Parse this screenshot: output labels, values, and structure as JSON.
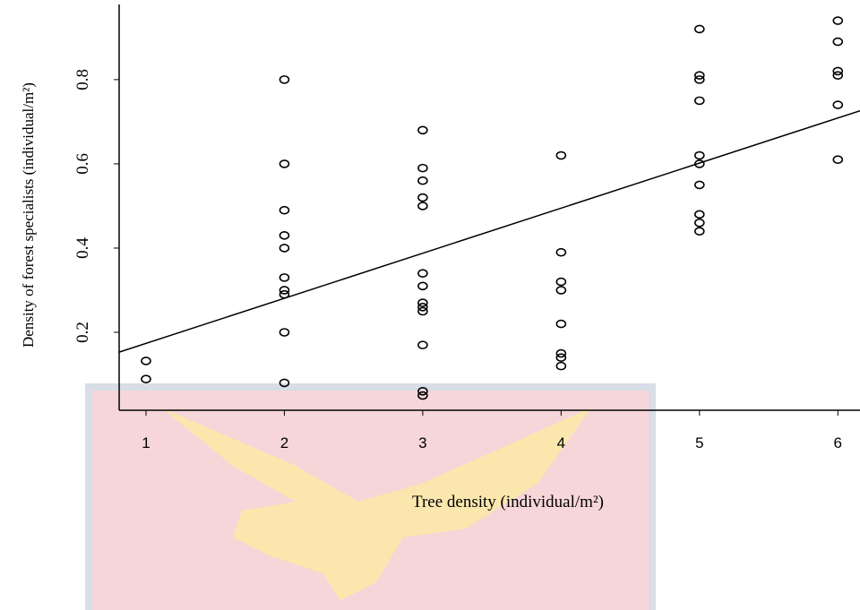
{
  "chart_data": {
    "type": "scatter",
    "xlabel": "Tree density (individual/m²)",
    "ylabel": "Density of forest specialists (individual/m²)",
    "x": [
      1,
      1,
      2,
      2,
      2,
      2,
      2,
      2,
      2,
      2,
      2,
      2,
      3,
      3,
      3,
      3,
      3,
      3,
      3,
      3,
      3,
      3,
      3,
      3,
      3,
      4,
      4,
      4,
      4,
      4,
      4,
      4,
      4,
      5,
      5,
      5,
      5,
      5,
      5,
      5,
      5,
      5,
      5,
      6,
      6,
      6,
      6,
      6,
      6
    ],
    "values": [
      0.132,
      0.089,
      0.8,
      0.6,
      0.49,
      0.43,
      0.4,
      0.33,
      0.3,
      0.29,
      0.2,
      0.08,
      0.68,
      0.59,
      0.56,
      0.52,
      0.5,
      0.34,
      0.31,
      0.27,
      0.26,
      0.25,
      0.17,
      0.06,
      0.05,
      0.62,
      0.39,
      0.32,
      0.3,
      0.22,
      0.15,
      0.14,
      0.12,
      0.92,
      0.81,
      0.8,
      0.75,
      0.62,
      0.6,
      0.55,
      0.48,
      0.46,
      0.44,
      0.94,
      0.89,
      0.82,
      0.81,
      0.74,
      0.61
    ],
    "fit_line": {
      "x": [
        0.806,
        6.16
      ],
      "values": [
        0.153,
        0.726
      ]
    },
    "xlim": [
      0.806,
      6.16
    ],
    "ylim": [
      0.015,
      0.989
    ],
    "xticks": [
      1,
      2,
      3,
      4,
      5,
      6
    ],
    "yticks": [
      0.2,
      0.4,
      0.6,
      0.8
    ],
    "color": "#000000"
  }
}
